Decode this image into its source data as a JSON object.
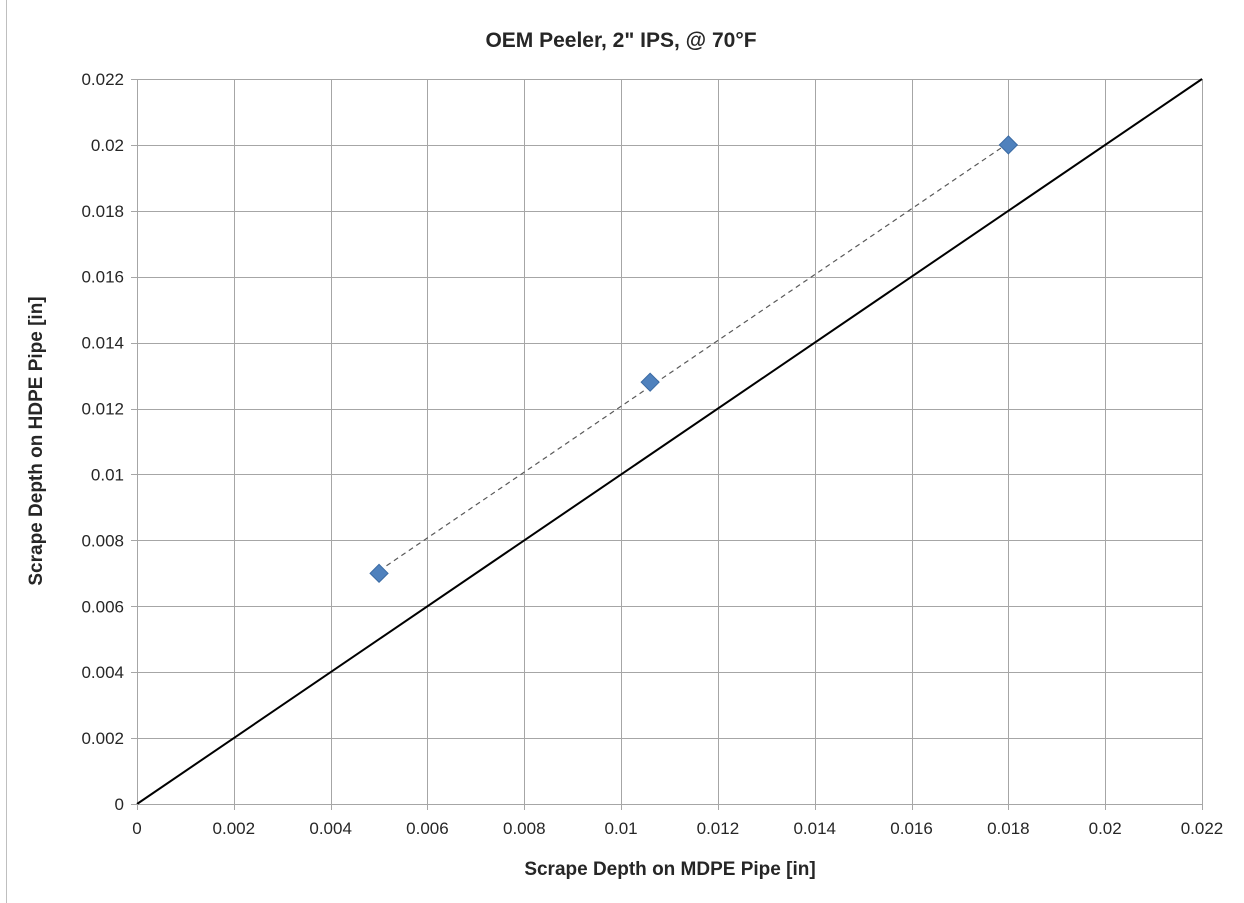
{
  "chart_data": {
    "type": "scatter",
    "title": "OEM Peeler, 2\" IPS, @ 70°F",
    "xlabel": "Scrape Depth on MDPE Pipe [in]",
    "ylabel": "Scrape Depth on HDPE Pipe [in]",
    "xlim": [
      0,
      0.022
    ],
    "ylim": [
      0,
      0.022
    ],
    "grid": true,
    "x_ticks": [
      "0",
      "0.002",
      "0.004",
      "0.006",
      "0.008",
      "0.01",
      "0.012",
      "0.014",
      "0.016",
      "0.018",
      "0.02",
      "0.022"
    ],
    "y_ticks": [
      "0",
      "0.002",
      "0.004",
      "0.006",
      "0.008",
      "0.01",
      "0.012",
      "0.014",
      "0.016",
      "0.018",
      "0.02",
      "0.022"
    ],
    "series": [
      {
        "marker": "diamond",
        "color": "#4f81bd",
        "trendline": "linear-dashed",
        "x": [
          0.005,
          0.0106,
          0.018
        ],
        "y": [
          0.007,
          0.0128,
          0.02
        ]
      }
    ],
    "reference_line": {
      "x": [
        0,
        0.022
      ],
      "y": [
        0,
        0.022
      ],
      "color": "#000000",
      "style": "solid"
    }
  }
}
